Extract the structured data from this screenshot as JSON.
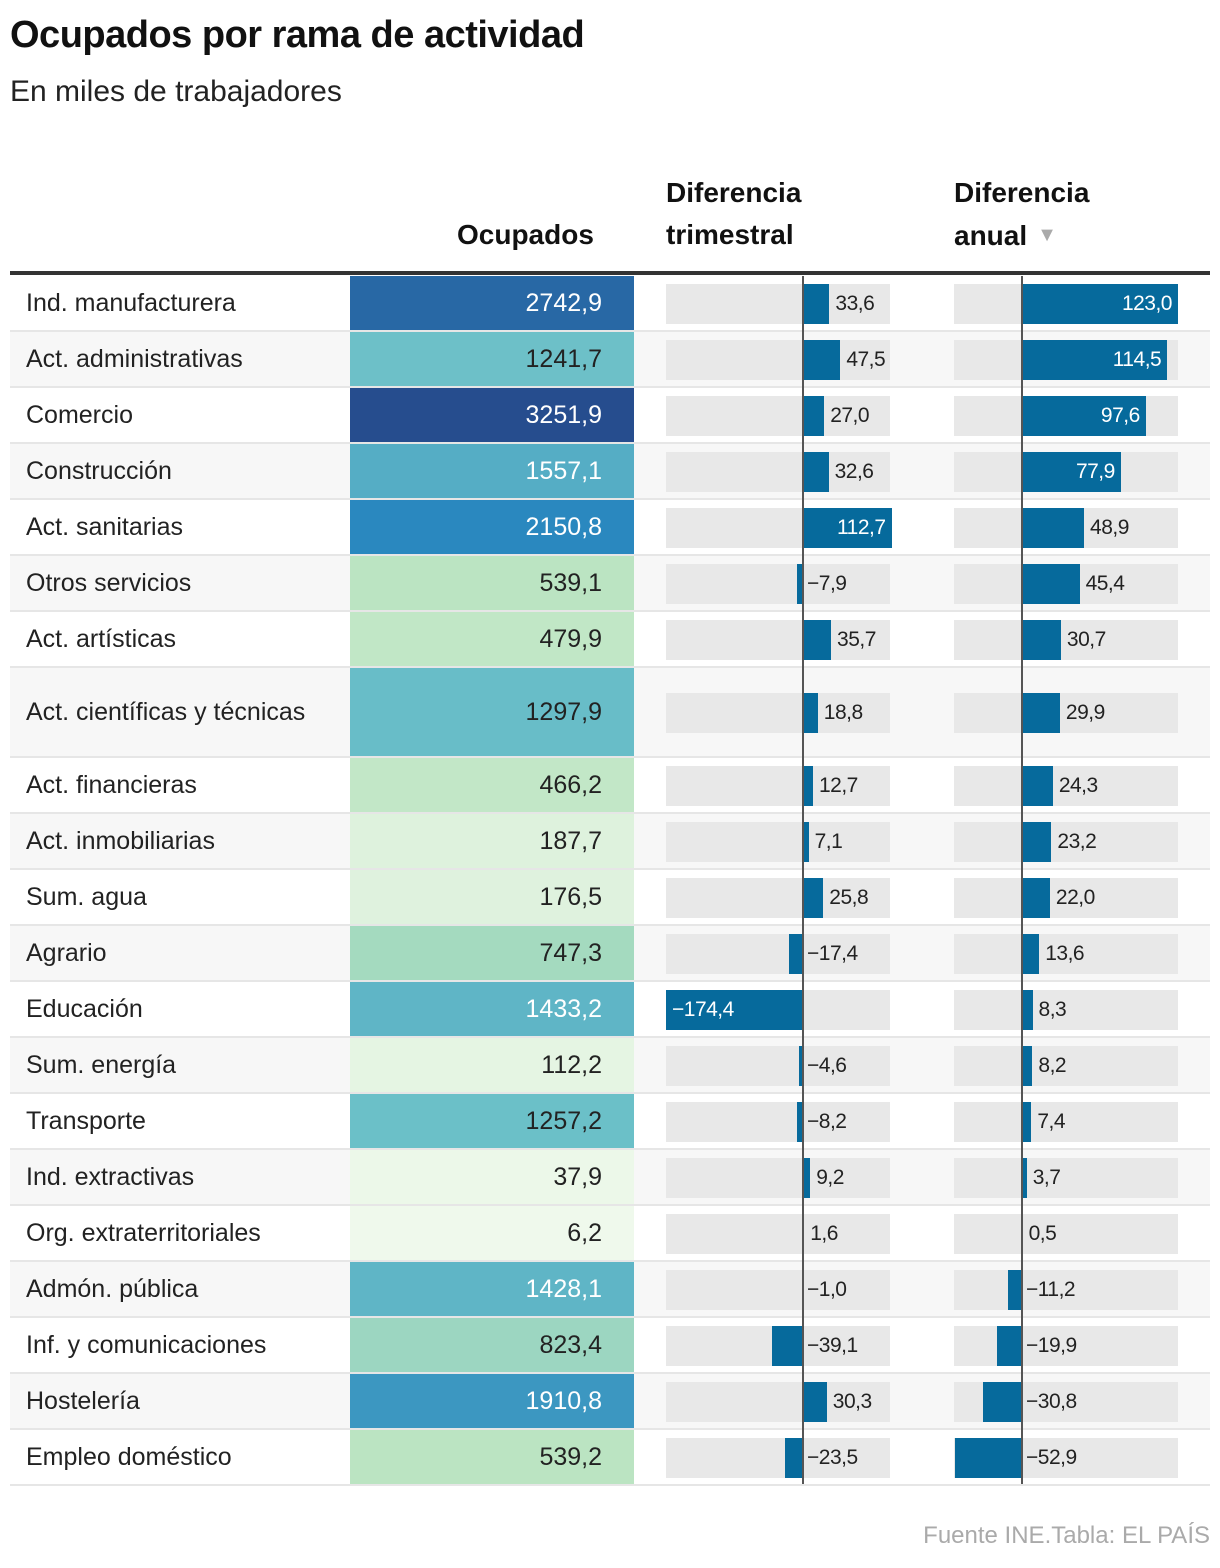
{
  "chart_data": {
    "type": "table",
    "title": "Ocupados por rama de actividad",
    "subtitle": "En miles de trabajadores",
    "columns": [
      "Ocupados",
      "Diferencia trimestral",
      "Diferencia anual"
    ],
    "sort_indicator": "▼",
    "sorted_by": "Diferencia anual",
    "sort_order": "descending",
    "bar_color": "#066a9c",
    "track_color": "#e8e8e8",
    "heat_colors": [
      "#f0f9ec",
      "#b5e2bd",
      "#6cc0c8",
      "#2a88bf",
      "#264a8c"
    ],
    "rows": [
      {
        "name": "Ind. manufacturera",
        "ocupados": "2742,9",
        "ocu": 2742.9,
        "trim": "33,6",
        "t": 33.6,
        "anual": "123,0",
        "a": 123.0
      },
      {
        "name": "Act. administrativas",
        "ocupados": "1241,7",
        "ocu": 1241.7,
        "trim": "47,5",
        "t": 47.5,
        "anual": "114,5",
        "a": 114.5
      },
      {
        "name": "Comercio",
        "ocupados": "3251,9",
        "ocu": 3251.9,
        "trim": "27,0",
        "t": 27.0,
        "anual": "97,6",
        "a": 97.6
      },
      {
        "name": "Construcción",
        "ocupados": "1557,1",
        "ocu": 1557.1,
        "trim": "32,6",
        "t": 32.6,
        "anual": "77,9",
        "a": 77.9
      },
      {
        "name": "Act. sanitarias",
        "ocupados": "2150,8",
        "ocu": 2150.8,
        "trim": "112,7",
        "t": 112.7,
        "anual": "48,9",
        "a": 48.9
      },
      {
        "name": "Otros servicios",
        "ocupados": "539,1",
        "ocu": 539.1,
        "trim": "−7,9",
        "t": -7.9,
        "anual": "45,4",
        "a": 45.4
      },
      {
        "name": "Act. artísticas",
        "ocupados": "479,9",
        "ocu": 479.9,
        "trim": "35,7",
        "t": 35.7,
        "anual": "30,7",
        "a": 30.7
      },
      {
        "name": "Act. científicas y técnicas",
        "ocupados": "1297,9",
        "ocu": 1297.9,
        "trim": "18,8",
        "t": 18.8,
        "anual": "29,9",
        "a": 29.9
      },
      {
        "name": "Act. financieras",
        "ocupados": "466,2",
        "ocu": 466.2,
        "trim": "12,7",
        "t": 12.7,
        "anual": "24,3",
        "a": 24.3
      },
      {
        "name": "Act. inmobiliarias",
        "ocupados": "187,7",
        "ocu": 187.7,
        "trim": "7,1",
        "t": 7.1,
        "anual": "23,2",
        "a": 23.2
      },
      {
        "name": "Sum. agua",
        "ocupados": "176,5",
        "ocu": 176.5,
        "trim": "25,8",
        "t": 25.8,
        "anual": "22,0",
        "a": 22.0
      },
      {
        "name": "Agrario",
        "ocupados": "747,3",
        "ocu": 747.3,
        "trim": "−17,4",
        "t": -17.4,
        "anual": "13,6",
        "a": 13.6
      },
      {
        "name": "Educación",
        "ocupados": "1433,2",
        "ocu": 1433.2,
        "trim": "−174,4",
        "t": -174.4,
        "anual": "8,3",
        "a": 8.3
      },
      {
        "name": "Sum. energía",
        "ocupados": "112,2",
        "ocu": 112.2,
        "trim": "−4,6",
        "t": -4.6,
        "anual": "8,2",
        "a": 8.2
      },
      {
        "name": "Transporte",
        "ocupados": "1257,2",
        "ocu": 1257.2,
        "trim": "−8,2",
        "t": -8.2,
        "anual": "7,4",
        "a": 7.4
      },
      {
        "name": "Ind. extractivas",
        "ocupados": "37,9",
        "ocu": 37.9,
        "trim": "9,2",
        "t": 9.2,
        "anual": "3,7",
        "a": 3.7
      },
      {
        "name": "Org. extraterritoriales",
        "ocupados": "6,2",
        "ocu": 6.2,
        "trim": "1,6",
        "t": 1.6,
        "anual": "0,5",
        "a": 0.5
      },
      {
        "name": "Admón. pública",
        "ocupados": "1428,1",
        "ocu": 1428.1,
        "trim": "−1,0",
        "t": -1.0,
        "anual": "−11,2",
        "a": -11.2
      },
      {
        "name": "Inf. y comunicaciones",
        "ocupados": "823,4",
        "ocu": 823.4,
        "trim": "−39,1",
        "t": -39.1,
        "anual": "−19,9",
        "a": -19.9
      },
      {
        "name": "Hostelería",
        "ocupados": "1910,8",
        "ocu": 1910.8,
        "trim": "30,3",
        "t": 30.3,
        "anual": "−30,8",
        "a": -30.8
      },
      {
        "name": "Empleo doméstico",
        "ocupados": "539,2",
        "ocu": 539.2,
        "trim": "−23,5",
        "t": -23.5,
        "anual": "−52,9",
        "a": -52.9
      }
    ],
    "source": "Fuente INE.Tabla: EL PAÍS"
  }
}
